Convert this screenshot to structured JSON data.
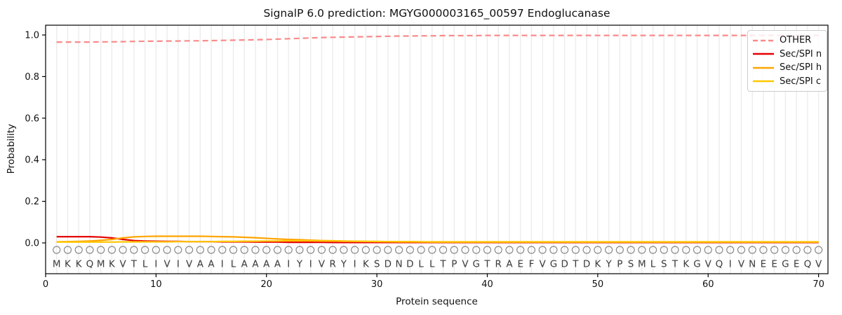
{
  "chart_data": {
    "type": "line",
    "title": "SignalP 6.0 prediction: MGYG000003165_00597 Endoglucanase",
    "xlabel": "Protein sequence",
    "ylabel": "Probability",
    "xlim": [
      0,
      70.85
    ],
    "ylim": [
      -0.15,
      1.05
    ],
    "xticks": [
      0,
      10,
      20,
      30,
      40,
      50,
      60,
      70
    ],
    "yticks": [
      0.0,
      0.2,
      0.4,
      0.6,
      0.8,
      1.0
    ],
    "ytick_labels": [
      "0.0",
      "0.2",
      "0.4",
      "0.6",
      "0.8",
      "1.0"
    ],
    "grid": "vertical gridline at every residue position",
    "legend_position": "upper right",
    "sequence": "MKKQMKVTLIVIVAAILAAAAIYIVRYIKSDNDLLTPVGTRAEFVGDTDKYPSMLSTKGVQIVNEEGEQV",
    "x": [
      1,
      2,
      3,
      4,
      5,
      6,
      7,
      8,
      9,
      10,
      11,
      12,
      13,
      14,
      15,
      16,
      17,
      18,
      19,
      20,
      21,
      22,
      23,
      24,
      25,
      26,
      27,
      28,
      29,
      30,
      31,
      32,
      33,
      34,
      35,
      36,
      37,
      38,
      39,
      40,
      41,
      42,
      43,
      44,
      45,
      46,
      47,
      48,
      49,
      50,
      51,
      52,
      53,
      54,
      55,
      56,
      57,
      58,
      59,
      60,
      61,
      62,
      63,
      64,
      65,
      66,
      67,
      68,
      69,
      70
    ],
    "series": [
      {
        "name": "OTHER",
        "color": "#fa8a8a",
        "dashed": true,
        "values": [
          0.966,
          0.966,
          0.966,
          0.966,
          0.967,
          0.967,
          0.968,
          0.969,
          0.97,
          0.97,
          0.971,
          0.971,
          0.972,
          0.972,
          0.973,
          0.974,
          0.975,
          0.976,
          0.977,
          0.978,
          0.98,
          0.982,
          0.984,
          0.986,
          0.988,
          0.989,
          0.99,
          0.991,
          0.992,
          0.993,
          0.994,
          0.995,
          0.995,
          0.996,
          0.996,
          0.997,
          0.997,
          0.997,
          0.997,
          0.998,
          0.998,
          0.998,
          0.998,
          0.998,
          0.998,
          0.998,
          0.998,
          0.998,
          0.998,
          0.998,
          0.998,
          0.998,
          0.998,
          0.998,
          0.998,
          0.998,
          0.998,
          0.998,
          0.998,
          0.998,
          0.998,
          0.998,
          0.998,
          0.998,
          0.998,
          0.998,
          0.998,
          0.998,
          0.998,
          0.998
        ]
      },
      {
        "name": "Sec/SPI n",
        "color": "#e60000",
        "dashed": false,
        "values": [
          0.03,
          0.03,
          0.03,
          0.03,
          0.028,
          0.024,
          0.017,
          0.011,
          0.009,
          0.008,
          0.007,
          0.007,
          0.006,
          0.006,
          0.006,
          0.005,
          0.005,
          0.005,
          0.004,
          0.004,
          0.004,
          0.003,
          0.003,
          0.003,
          0.003,
          0.002,
          0.002,
          0.002,
          0.002,
          0.002,
          0.002,
          0.002,
          0.002,
          0.002,
          0.002,
          0.002,
          0.002,
          0.002,
          0.002,
          0.002,
          0.002,
          0.002,
          0.002,
          0.002,
          0.002,
          0.002,
          0.002,
          0.002,
          0.002,
          0.002,
          0.002,
          0.002,
          0.002,
          0.002,
          0.002,
          0.002,
          0.002,
          0.002,
          0.002,
          0.002,
          0.002,
          0.002,
          0.002,
          0.002,
          0.002,
          0.002,
          0.002,
          0.002,
          0.002,
          0.002
        ]
      },
      {
        "name": "Sec/SPI h",
        "color": "#ffa500",
        "dashed": false,
        "values": [
          0.005,
          0.006,
          0.007,
          0.009,
          0.012,
          0.017,
          0.024,
          0.029,
          0.031,
          0.032,
          0.032,
          0.032,
          0.032,
          0.032,
          0.031,
          0.03,
          0.029,
          0.027,
          0.025,
          0.022,
          0.019,
          0.017,
          0.015,
          0.013,
          0.011,
          0.01,
          0.009,
          0.008,
          0.007,
          0.006,
          0.006,
          0.005,
          0.005,
          0.005,
          0.004,
          0.004,
          0.004,
          0.004,
          0.004,
          0.004,
          0.004,
          0.004,
          0.004,
          0.004,
          0.004,
          0.004,
          0.004,
          0.004,
          0.004,
          0.004,
          0.004,
          0.004,
          0.004,
          0.004,
          0.004,
          0.004,
          0.004,
          0.004,
          0.004,
          0.004,
          0.004,
          0.004,
          0.004,
          0.004,
          0.004,
          0.004,
          0.004,
          0.004,
          0.004,
          0.004
        ]
      },
      {
        "name": "Sec/SPI c",
        "color": "#ffc800",
        "dashed": false,
        "values": [
          0.004,
          0.004,
          0.004,
          0.004,
          0.004,
          0.004,
          0.005,
          0.005,
          0.005,
          0.005,
          0.005,
          0.006,
          0.006,
          0.006,
          0.006,
          0.007,
          0.007,
          0.008,
          0.008,
          0.009,
          0.009,
          0.01,
          0.01,
          0.01,
          0.009,
          0.009,
          0.008,
          0.008,
          0.007,
          0.007,
          0.006,
          0.006,
          0.006,
          0.005,
          0.005,
          0.005,
          0.005,
          0.005,
          0.005,
          0.005,
          0.005,
          0.005,
          0.005,
          0.005,
          0.005,
          0.005,
          0.005,
          0.005,
          0.005,
          0.005,
          0.005,
          0.005,
          0.005,
          0.005,
          0.005,
          0.005,
          0.005,
          0.005,
          0.005,
          0.005,
          0.005,
          0.005,
          0.005,
          0.005,
          0.005,
          0.005,
          0.005,
          0.005,
          0.005,
          0.005
        ]
      }
    ],
    "marker": {
      "shape": "circle-outline",
      "color": "#8a8a8a"
    },
    "colors": {
      "grid": "#ececec",
      "spine": "#000000",
      "sequence_letters": "#3a3a3a",
      "tick_labels": "#111111"
    }
  }
}
